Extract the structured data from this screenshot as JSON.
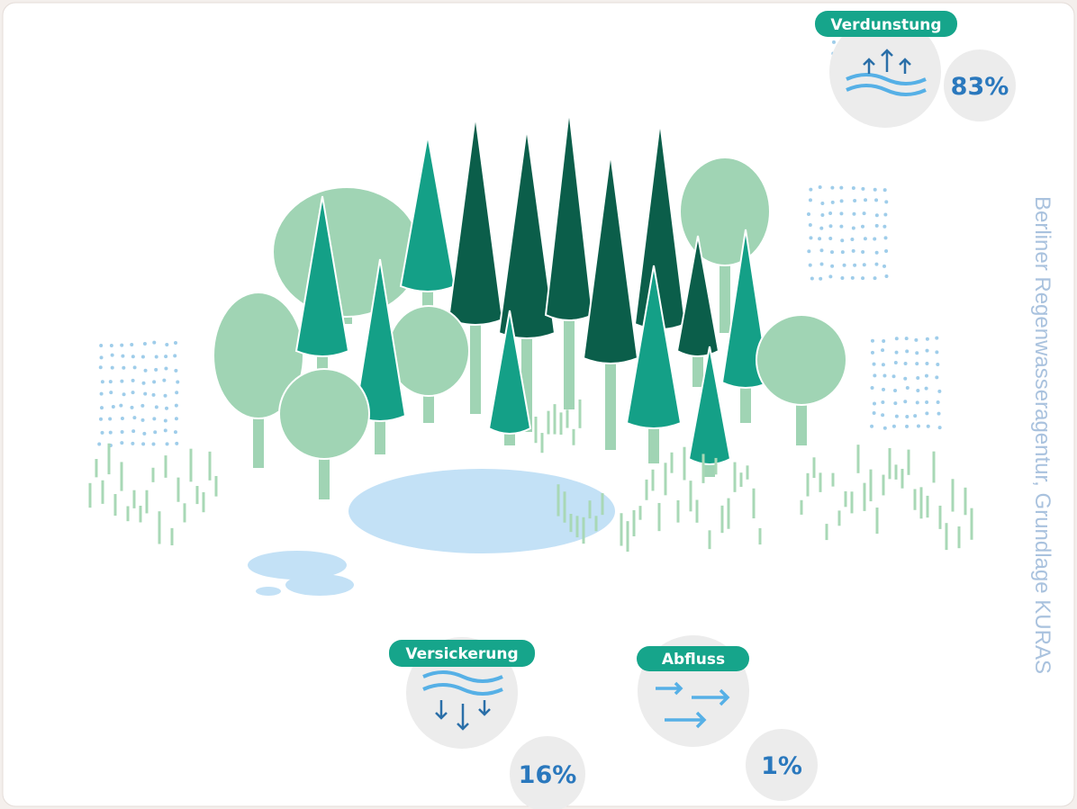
{
  "labels": [
    {
      "name": "Verdunstung",
      "value": "83%"
    },
    {
      "name": "Versickerung",
      "value": "16%"
    },
    {
      "name": "Abfluss",
      "value": "1%"
    }
  ],
  "credit": "Berliner Regenwasseragentur, Grundlage KURAS"
}
